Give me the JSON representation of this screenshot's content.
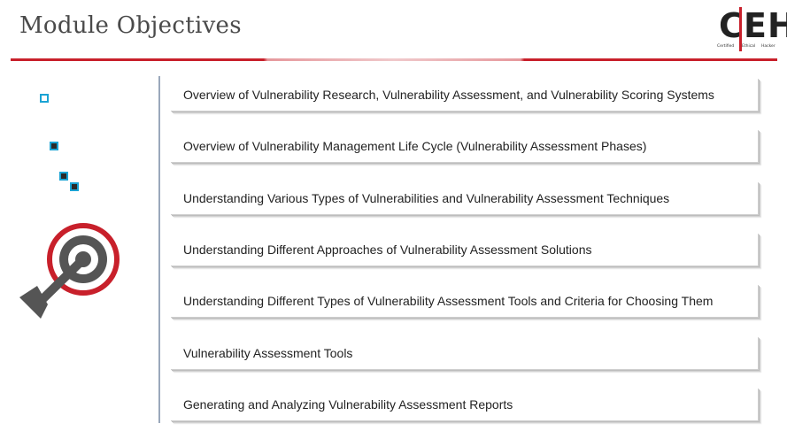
{
  "header": {
    "title": "Module Objectives",
    "logo": {
      "letter_c": "C",
      "letters_eh": "EH",
      "word1": "Certified",
      "word2": "Ethical",
      "word3": "Hacker"
    }
  },
  "objectives": [
    "Overview of Vulnerability Research, Vulnerability Assessment, and Vulnerability Scoring Systems",
    "Overview of Vulnerability Management Life Cycle (Vulnerability Assessment Phases)",
    "Understanding Various Types of Vulnerabilities and Vulnerability Assessment Techniques",
    "Understanding Different Approaches of Vulnerability Assessment Solutions",
    "Understanding Different Types of Vulnerability Assessment Tools and Criteria for Choosing Them",
    "Vulnerability Assessment Tools",
    "Generating and Analyzing Vulnerability Assessment Reports"
  ],
  "icons": [
    "outline-square-icon",
    "filled-square-icon",
    "double-square-icon",
    "target-arrow-icon"
  ],
  "colors": {
    "accent_red": "#c8202b",
    "accent_blue": "#1aa3d4",
    "divider": "#9aa8bb",
    "icon_gray": "#555555"
  }
}
